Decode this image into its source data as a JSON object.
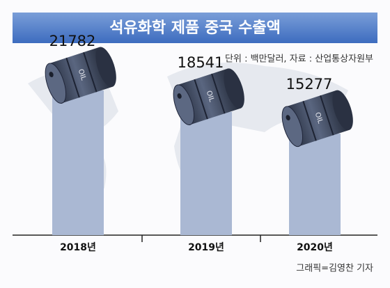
{
  "chart_data": {
    "type": "bar",
    "title": "석유화학 제품 중국 수출액",
    "subtitle": "단위 : 백만달러, 자료 : 산업통상자원부",
    "categories": [
      "2018년",
      "2019년",
      "2020년"
    ],
    "values": [
      21782,
      18541,
      15277
    ],
    "color": "#aab8d3",
    "barrel_label": "OIL",
    "credit": "그래픽=김영찬 기자"
  }
}
